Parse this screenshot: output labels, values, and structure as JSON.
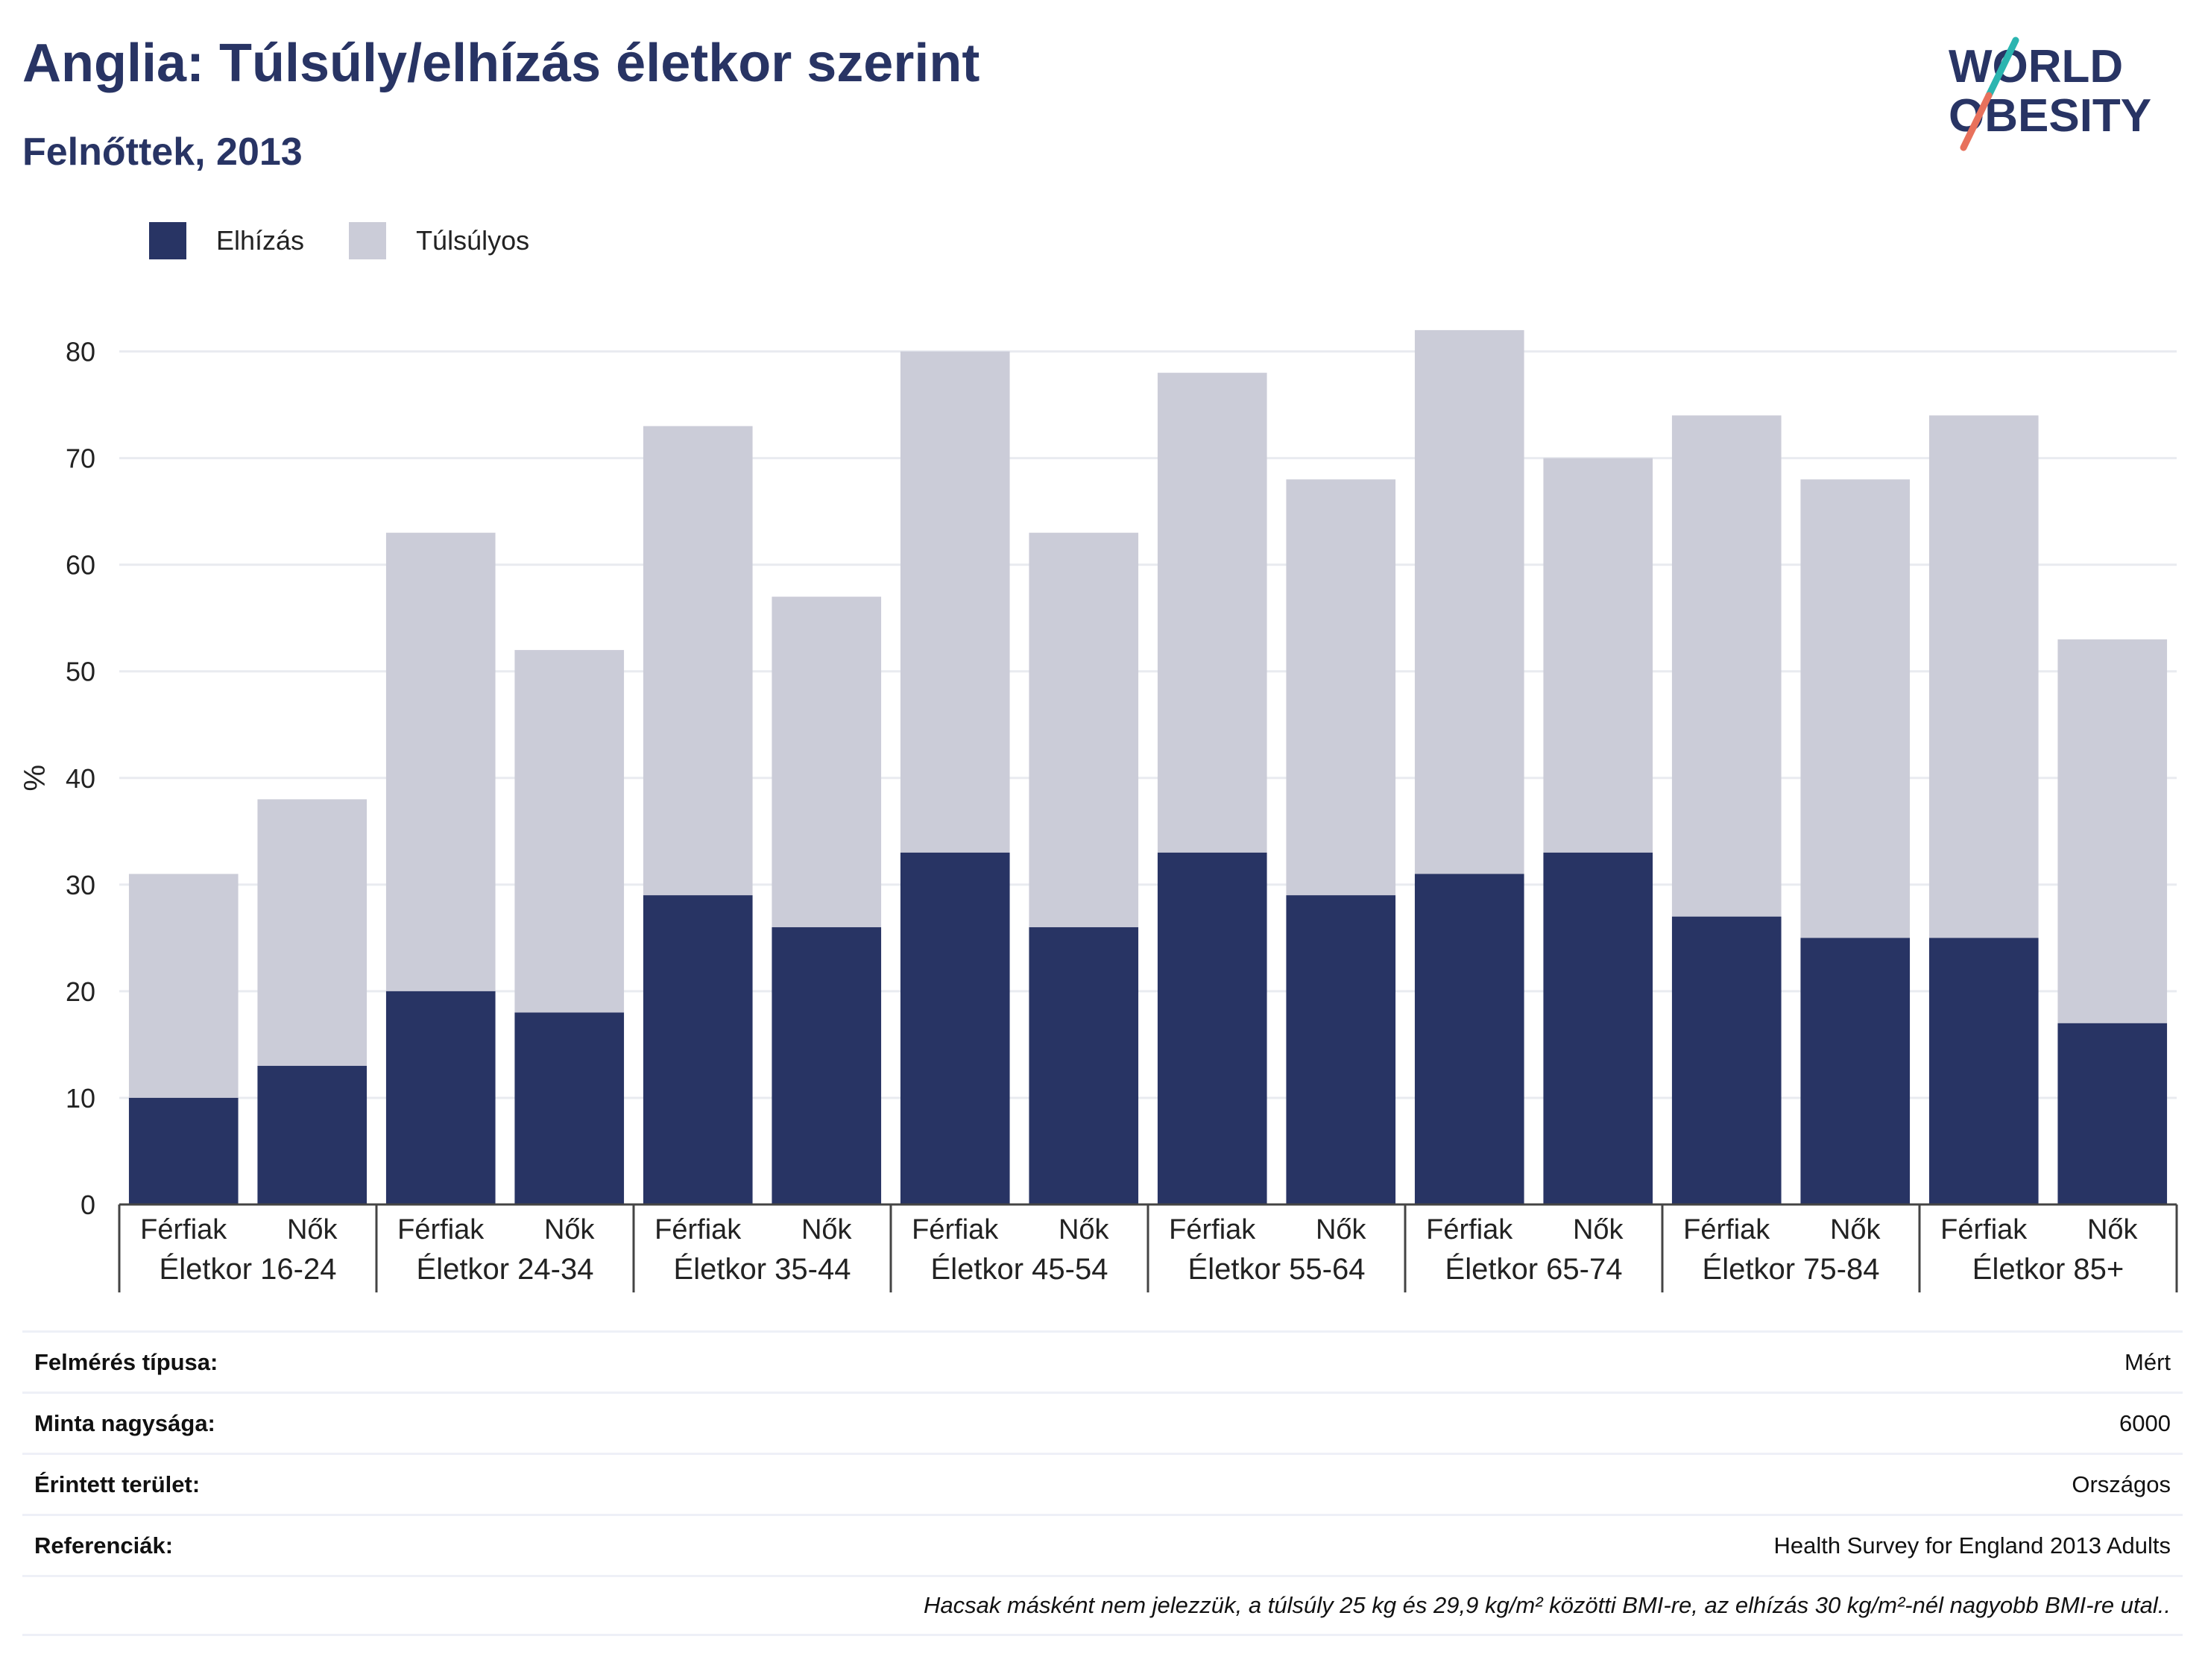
{
  "title": "Anglia: Túlsúly/elhízás életkor szerint",
  "subtitle": "Felnőttek, 2013",
  "logo": {
    "line1": "WORLD",
    "line2": "OBESITY"
  },
  "colors": {
    "obesity": "#283464",
    "overweight": "#cbccd8",
    "accent_teal": "#2bb5b0",
    "accent_coral": "#e8715c",
    "grid": "#e9ebf0",
    "axis": "#444444"
  },
  "legend": [
    {
      "label": "Elhízás",
      "color": "#283464"
    },
    {
      "label": "Túlsúlyos",
      "color": "#cbccd8"
    }
  ],
  "chart_data": {
    "type": "bar",
    "stacked": true,
    "ylabel": "%",
    "ylim": [
      0,
      85
    ],
    "yticks": [
      0,
      10,
      20,
      30,
      40,
      50,
      60,
      70,
      80
    ],
    "grid": true,
    "legend_position": "top-left",
    "groups": [
      "Életkor 16-24",
      "Életkor 24-34",
      "Életkor 35-44",
      "Életkor 45-54",
      "Életkor 55-64",
      "Életkor 65-74",
      "Életkor 75-84",
      "Életkor 85+"
    ],
    "sexes": [
      "Férfiak",
      "Nők"
    ],
    "series": [
      {
        "name": "Elhízás",
        "values": [
          10,
          13,
          20,
          18,
          29,
          26,
          33,
          26,
          33,
          29,
          31,
          33,
          27,
          25,
          25,
          17
        ]
      },
      {
        "name": "Túlsúlyos",
        "values": [
          21,
          25,
          43,
          34,
          44,
          31,
          47,
          37,
          45,
          39,
          51,
          37,
          47,
          43,
          49,
          36
        ]
      }
    ]
  },
  "info": [
    {
      "label": "Felmérés típusa:",
      "value": "Mért"
    },
    {
      "label": "Minta nagysága:",
      "value": "6000"
    },
    {
      "label": "Érintett terület:",
      "value": "Országos"
    },
    {
      "label": "Referenciák:",
      "value": "Health Survey for England 2013 Adults"
    }
  ],
  "note": "Hacsak másként nem jelezzük, a túlsúly 25 kg és 29,9 kg/m² közötti BMI-re, az elhízás 30 kg/m²-nél nagyobb BMI-re utal.."
}
